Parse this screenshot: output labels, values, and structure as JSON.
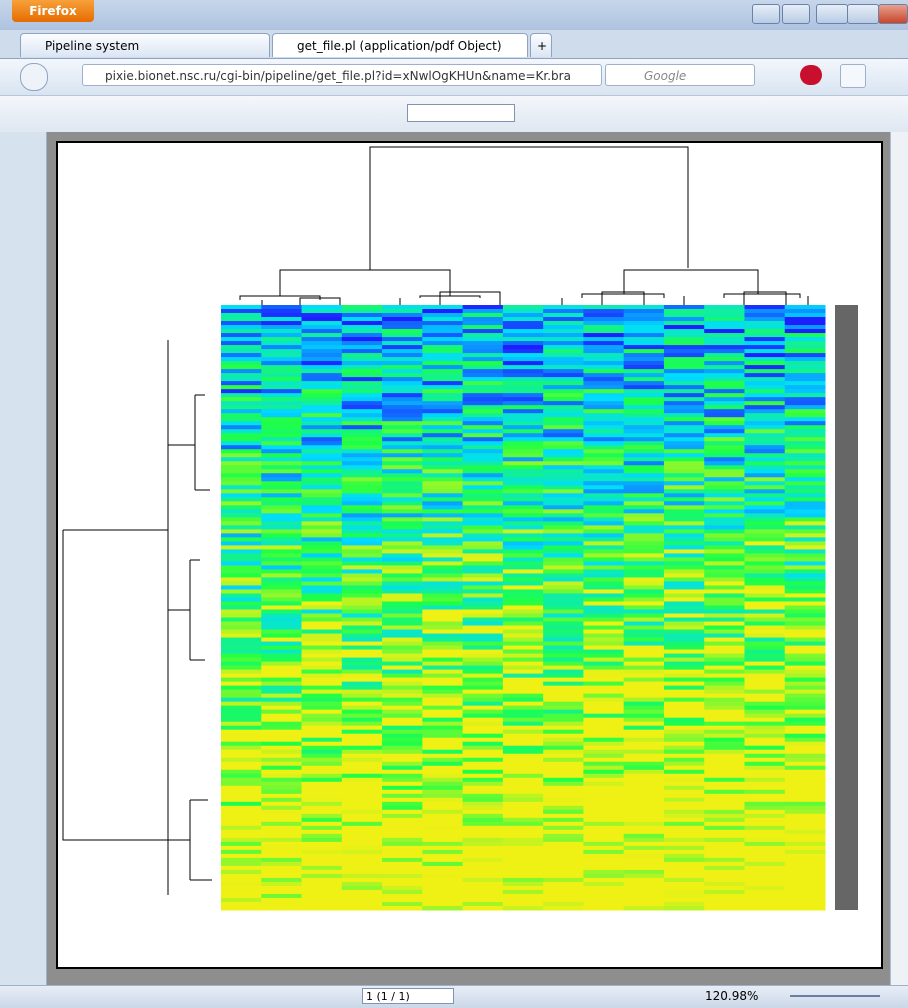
{
  "browser": {
    "menu_button": "Firefox",
    "tabs": [
      "Pipeline system",
      "get_file.pl (application/pdf Object)"
    ],
    "url": "pixie.bionet.nsc.ru/cgi-bin/pipeline/get_file.pl?id=xNwlOgKHUn&name=Kr.bra",
    "search_placeholder": "Google"
  },
  "viewer": {
    "page_field": "1 (1 / 1)",
    "zoom": "120.98%"
  }
}
